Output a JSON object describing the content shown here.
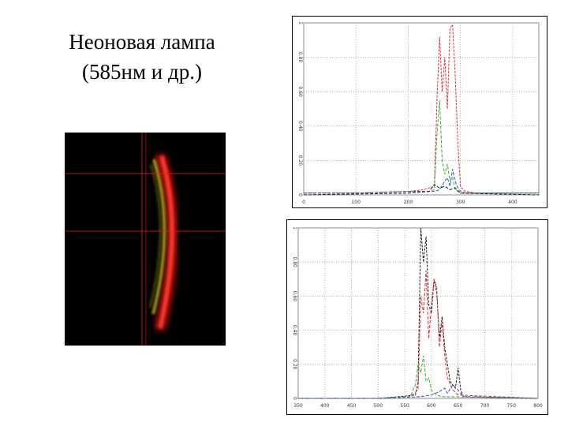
{
  "slide": {
    "title_line1": "Неоновая лампа",
    "title_line2": "(585нм и др.)"
  },
  "photo": {
    "description_icon": "neon-lamp-spectrum-photo",
    "crosshair_color": "#e02020"
  },
  "chart_data": [
    {
      "type": "line",
      "xlim": [
        0,
        450
      ],
      "ylim": [
        0,
        1
      ],
      "x_ticks": [
        "0",
        "100",
        "200",
        "300",
        "400"
      ],
      "x_tick_values": [
        0,
        100,
        200,
        300,
        400
      ],
      "y_ticks": [
        "0",
        "0.20",
        "0.40",
        "0.60",
        "0.80",
        "1"
      ],
      "y_tick_values": [
        0,
        0.2,
        0.4,
        0.6,
        0.8,
        1.0
      ],
      "grid": true,
      "series": [
        {
          "color": "#e03030",
          "x": [
            0,
            100,
            200,
            230,
            250,
            255,
            260,
            265,
            270,
            275,
            280,
            285,
            290,
            295,
            300,
            305,
            310,
            330,
            450
          ],
          "y": [
            0.01,
            0.01,
            0.02,
            0.03,
            0.05,
            0.55,
            0.92,
            0.6,
            0.8,
            0.5,
            0.97,
            0.99,
            0.7,
            0.3,
            0.05,
            0.03,
            0.02,
            0.01,
            0.01
          ]
        },
        {
          "color": "#30b030",
          "x": [
            0,
            100,
            200,
            240,
            250,
            255,
            260,
            265,
            270,
            275,
            280,
            285,
            290,
            300,
            450
          ],
          "y": [
            0.01,
            0.01,
            0.02,
            0.02,
            0.03,
            0.35,
            0.55,
            0.2,
            0.12,
            0.18,
            0.08,
            0.1,
            0.03,
            0.01,
            0.01
          ]
        },
        {
          "color": "#3050d0",
          "x": [
            0,
            100,
            200,
            250,
            260,
            270,
            275,
            280,
            285,
            290,
            295,
            300,
            310,
            450
          ],
          "y": [
            0.01,
            0.01,
            0.02,
            0.02,
            0.03,
            0.08,
            0.1,
            0.05,
            0.15,
            0.08,
            0.04,
            0.02,
            0.01,
            0.01
          ]
        },
        {
          "color": "#202020",
          "x": [
            0,
            200,
            240,
            250,
            260,
            270,
            280,
            290,
            300,
            450
          ],
          "y": [
            0.0,
            0.01,
            0.02,
            0.06,
            0.04,
            0.05,
            0.03,
            0.04,
            0.01,
            0.0
          ]
        }
      ]
    },
    {
      "type": "line",
      "xlim": [
        350,
        800
      ],
      "ylim": [
        0,
        1
      ],
      "x_ticks": [
        "350",
        "400",
        "450",
        "500",
        "550",
        "600",
        "650",
        "700",
        "750",
        "800"
      ],
      "x_tick_values": [
        350,
        400,
        450,
        500,
        550,
        600,
        650,
        700,
        750,
        800
      ],
      "y_ticks": [
        "0",
        "0.20",
        "0.40",
        "0.60",
        "0.80",
        "1"
      ],
      "y_tick_values": [
        0,
        0.2,
        0.4,
        0.6,
        0.8,
        1.0
      ],
      "grid": true,
      "series": [
        {
          "color": "#202020",
          "x": [
            350,
            500,
            540,
            570,
            575,
            580,
            585,
            590,
            595,
            600,
            605,
            610,
            615,
            620,
            625,
            630,
            635,
            640,
            645,
            650,
            655,
            660,
            800
          ],
          "y": [
            0.0,
            0.0,
            0.01,
            0.02,
            0.1,
            1.0,
            0.8,
            0.95,
            0.55,
            0.5,
            0.7,
            0.62,
            0.35,
            0.48,
            0.3,
            0.2,
            0.1,
            0.08,
            0.06,
            0.18,
            0.05,
            0.01,
            0.0
          ]
        },
        {
          "color": "#e03030",
          "x": [
            350,
            500,
            560,
            575,
            580,
            585,
            590,
            595,
            600,
            605,
            610,
            615,
            620,
            625,
            630,
            640,
            650,
            800
          ],
          "y": [
            0.0,
            0.0,
            0.01,
            0.05,
            0.6,
            0.5,
            0.75,
            0.35,
            0.55,
            0.7,
            0.65,
            0.3,
            0.45,
            0.25,
            0.12,
            0.05,
            0.02,
            0.0
          ]
        },
        {
          "color": "#30b030",
          "x": [
            350,
            500,
            560,
            570,
            575,
            580,
            585,
            590,
            595,
            600,
            605,
            610,
            620,
            800
          ],
          "y": [
            0.0,
            0.0,
            0.01,
            0.08,
            0.2,
            0.15,
            0.25,
            0.1,
            0.12,
            0.05,
            0.03,
            0.02,
            0.01,
            0.0
          ]
        },
        {
          "color": "#3050d0",
          "x": [
            350,
            500,
            580,
            600,
            615,
            625,
            630,
            640,
            650,
            660,
            800
          ],
          "y": [
            0.0,
            0.0,
            0.01,
            0.02,
            0.04,
            0.06,
            0.03,
            0.08,
            0.05,
            0.01,
            0.0
          ]
        }
      ]
    }
  ]
}
